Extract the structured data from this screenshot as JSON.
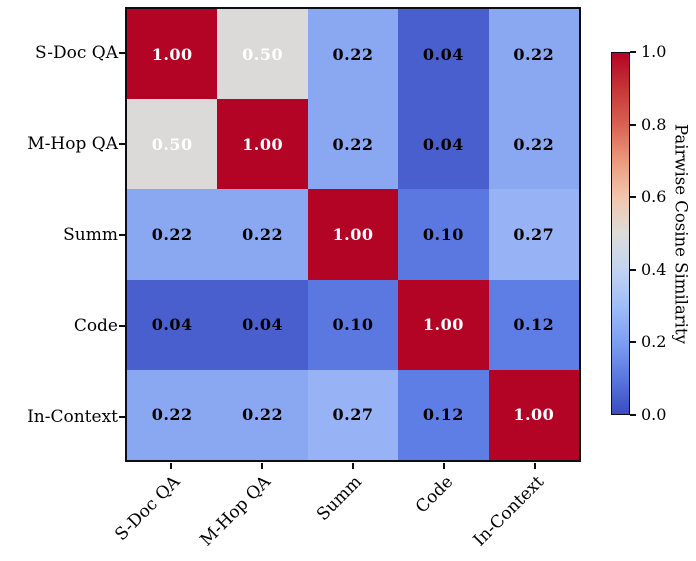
{
  "chart_data": {
    "type": "heatmap",
    "title": "",
    "categories": [
      "S-Doc QA",
      "M-Hop QA",
      "Summ",
      "Code",
      "In-Context"
    ],
    "matrix": [
      [
        1.0,
        0.5,
        0.22,
        0.04,
        0.22
      ],
      [
        0.5,
        1.0,
        0.22,
        0.04,
        0.22
      ],
      [
        0.22,
        0.22,
        1.0,
        0.1,
        0.27
      ],
      [
        0.04,
        0.04,
        0.1,
        1.0,
        0.12
      ],
      [
        0.22,
        0.22,
        0.27,
        0.12,
        1.0
      ]
    ],
    "annotation_format": "0.00",
    "grid": false,
    "colormap": "coolwarm",
    "value_styles": {
      "1.00": {
        "bg": "#B40426",
        "fg": "#FFFFFF"
      },
      "0.50": {
        "bg": "#DBDAD8",
        "fg": "#FFFFFF"
      },
      "0.27": {
        "bg": "#97B3F5",
        "fg": "#000000"
      },
      "0.22": {
        "bg": "#8AA8F1",
        "fg": "#000000"
      },
      "0.12": {
        "bg": "#5F7EE5",
        "fg": "#000000"
      },
      "0.10": {
        "bg": "#5B78E0",
        "fg": "#000000"
      },
      "0.04": {
        "bg": "#4A5FCE",
        "fg": "#000000"
      }
    },
    "colorbar": {
      "label": "Pairwise Cosine Similarity",
      "range": [
        0.0,
        1.0
      ],
      "ticks": [
        "1.0",
        "0.8",
        "0.6",
        "0.4",
        "0.2",
        "0.0"
      ],
      "gradient_stops": [
        {
          "pos": 0.0,
          "color": "#3B4CC0"
        },
        {
          "pos": 0.1,
          "color": "#5A77DF"
        },
        {
          "pos": 0.2,
          "color": "#7D9FF2"
        },
        {
          "pos": 0.3,
          "color": "#9FBDF9"
        },
        {
          "pos": 0.4,
          "color": "#C3D4F1"
        },
        {
          "pos": 0.5,
          "color": "#DDDCDA"
        },
        {
          "pos": 0.6,
          "color": "#F2C6AD"
        },
        {
          "pos": 0.7,
          "color": "#EC9A7C"
        },
        {
          "pos": 0.8,
          "color": "#D96252"
        },
        {
          "pos": 0.9,
          "color": "#C63637"
        },
        {
          "pos": 1.0,
          "color": "#B40426"
        }
      ]
    }
  }
}
